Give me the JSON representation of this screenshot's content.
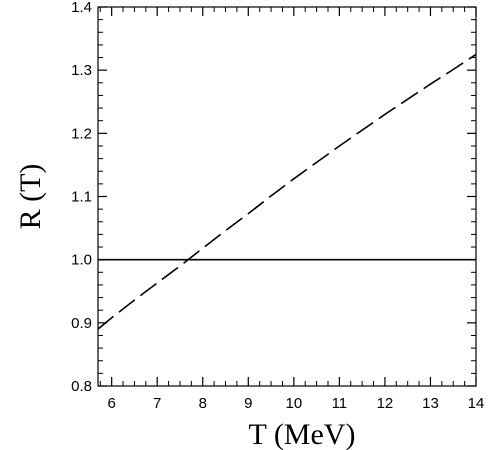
{
  "chart_data": {
    "type": "line",
    "title": "",
    "xlabel": "T   (MeV)",
    "ylabel": "R (T)",
    "xlim": [
      5.7,
      14
    ],
    "ylim": [
      0.8,
      1.4
    ],
    "x_ticks": [
      6,
      7,
      8,
      9,
      10,
      11,
      12,
      13,
      14
    ],
    "y_ticks": [
      0.8,
      0.9,
      1.0,
      1.1,
      1.2,
      1.3,
      1.4
    ],
    "y_tick_labels": [
      "0.8",
      "0.9",
      "1.0",
      "1.1",
      "1.2",
      "1.3",
      "1.4"
    ],
    "grid": false,
    "legend": "none",
    "series": [
      {
        "style": "dashed",
        "color": "#000000",
        "x": [
          5.7,
          6,
          6.5,
          7,
          7.5,
          8,
          8.5,
          9,
          9.5,
          10,
          10.5,
          11,
          11.5,
          12,
          12.5,
          13,
          13.5,
          14
        ],
        "y": [
          0.89,
          0.908,
          0.936,
          0.963,
          0.99,
          1.018,
          1.046,
          1.073,
          1.101,
          1.128,
          1.154,
          1.18,
          1.205,
          1.23,
          1.254,
          1.278,
          1.301,
          1.325
        ]
      },
      {
        "style": "solid",
        "color": "#000000",
        "x": [
          5.7,
          14
        ],
        "y": [
          1.0,
          1.0
        ]
      }
    ]
  }
}
